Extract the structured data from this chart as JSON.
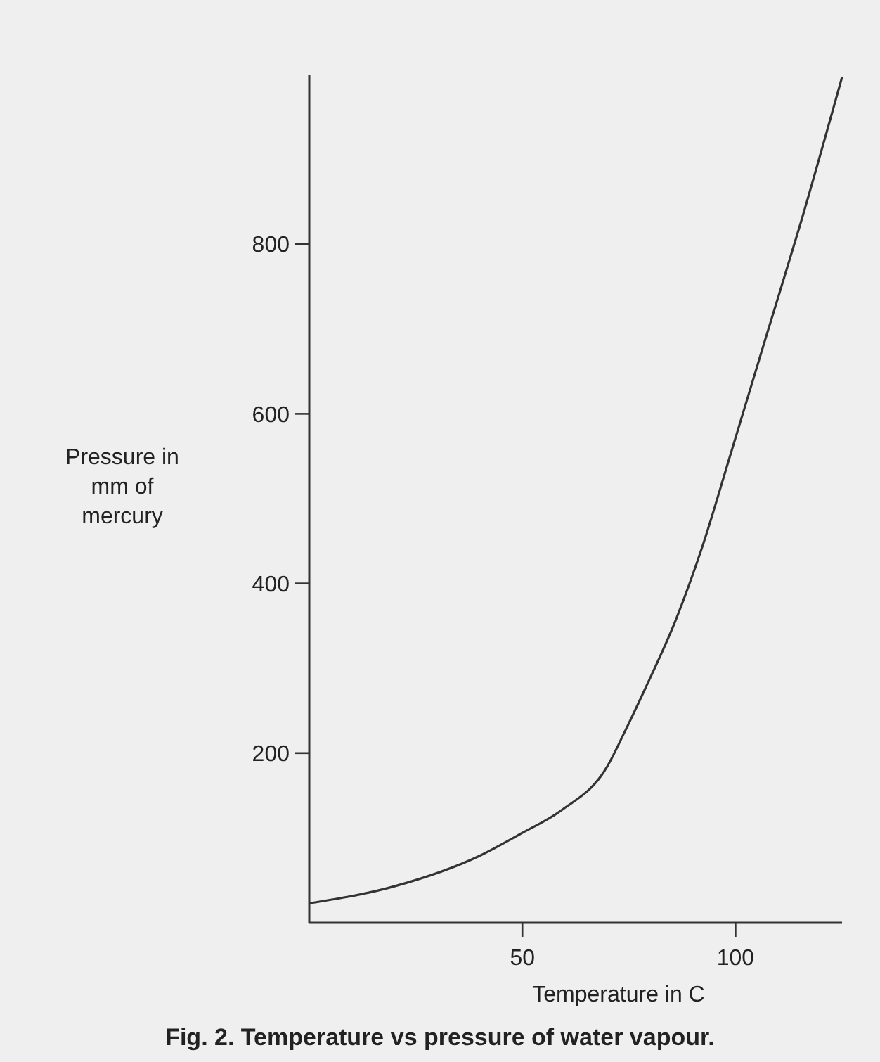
{
  "chart_data": {
    "type": "line",
    "title": "Fig. 2. Temperature vs pressure of water vapour.",
    "xlabel": "Temperature in C",
    "ylabel": "Pressure in mm of mercury",
    "x": [
      0,
      20,
      40,
      50,
      59,
      70,
      74,
      79,
      86,
      92,
      99,
      107,
      115,
      125
    ],
    "series": [
      {
        "color": "#333333",
        "values": [
          23,
          43,
          79,
          106,
          132,
          185,
          225,
          278,
          357,
          440,
          555,
          688,
          820,
          997
        ]
      }
    ],
    "xlim": [
      0,
      125
    ],
    "ylim": [
      0,
      1000
    ],
    "xticks": [
      50,
      100
    ],
    "yticks": [
      200,
      400,
      600,
      800
    ],
    "grid": false,
    "marker": "none",
    "line_style": "solid"
  }
}
